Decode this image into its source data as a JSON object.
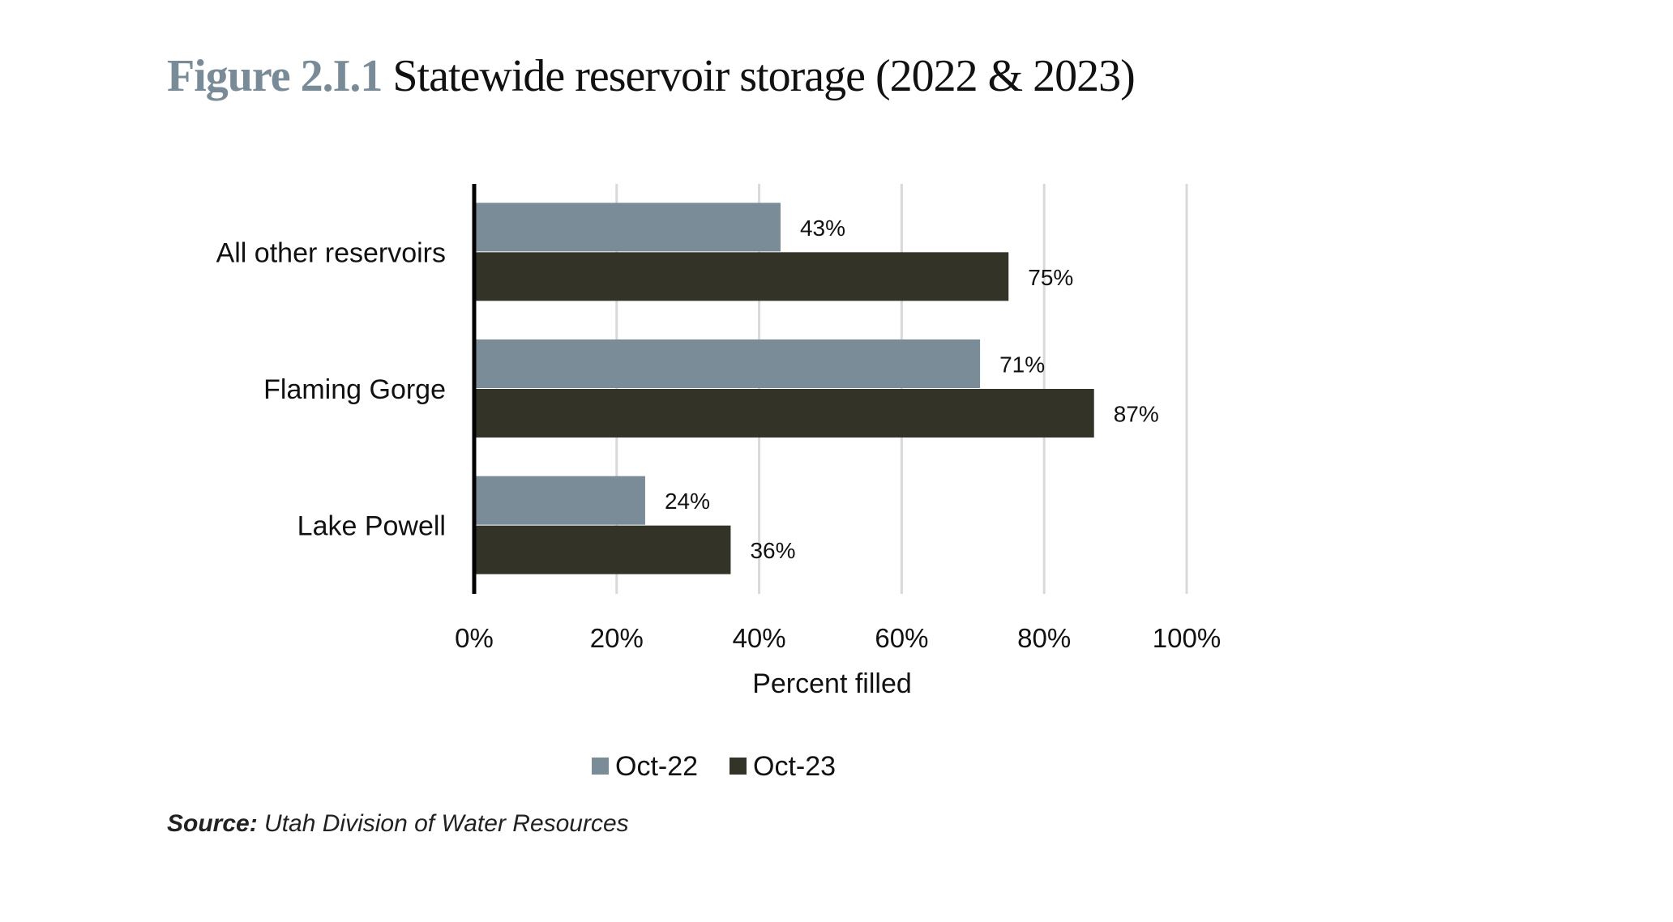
{
  "title": {
    "figure_label": "Figure 2.I.1",
    "text": "Statewide reservoir storage (2022 & 2023)"
  },
  "chart_data": {
    "type": "bar",
    "orientation": "horizontal",
    "categories": [
      "All other reservoirs",
      "Flaming Gorge",
      "Lake Powell"
    ],
    "series": [
      {
        "name": "Oct-22",
        "values": [
          43,
          71,
          24
        ],
        "labels": [
          "43%",
          "71%",
          "24%"
        ],
        "color": "#7b8c99"
      },
      {
        "name": "Oct-23",
        "values": [
          75,
          87,
          36
        ],
        "labels": [
          "75%",
          "87%",
          "36%"
        ],
        "color": "#333328"
      }
    ],
    "xlabel": "Percent filled",
    "ylabel": "",
    "xlim": [
      0,
      100
    ],
    "xticks": [
      "0%",
      "20%",
      "40%",
      "60%",
      "80%",
      "100%"
    ],
    "grid": "vertical",
    "legend": "bottom"
  },
  "source": {
    "label": "Source:",
    "text": "Utah Division of Water Resources"
  }
}
